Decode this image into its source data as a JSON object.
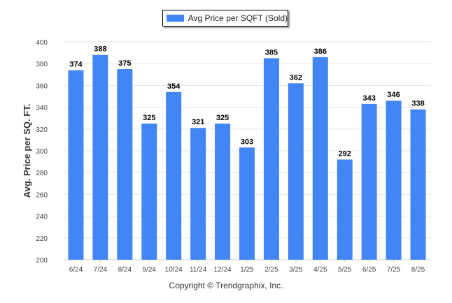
{
  "legend": {
    "label": "Avg Price per SQFT (Sold)"
  },
  "footer": {
    "copyright": "Copyright © Trendgraphix, Inc."
  },
  "colors": {
    "bar": "#4285F4",
    "grid": "#e6e6e6",
    "axis_text": "#444444",
    "label_text": "#000000"
  },
  "chart_data": {
    "type": "bar",
    "title": "",
    "xlabel": "",
    "ylabel": "Avg. Price per SQ. FT.",
    "categories": [
      "6/24",
      "7/24",
      "8/24",
      "9/24",
      "10/24",
      "11/24",
      "12/24",
      "1/25",
      "2/25",
      "3/25",
      "4/25",
      "5/25",
      "6/25",
      "7/25",
      "8/25"
    ],
    "series": [
      {
        "name": "Avg Price per SQFT (Sold)",
        "values": [
          374,
          388,
          375,
          325,
          354,
          321,
          325,
          303,
          385,
          362,
          386,
          292,
          343,
          346,
          338
        ]
      }
    ],
    "ylim": [
      200,
      400
    ],
    "yticks": [
      200,
      220,
      240,
      260,
      280,
      300,
      320,
      340,
      360,
      380,
      400
    ],
    "grid": true,
    "legend_position": "top-center",
    "data_labels": true
  }
}
